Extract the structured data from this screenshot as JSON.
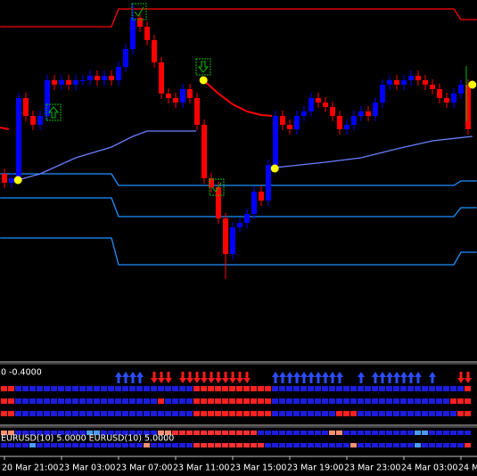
{
  "chart_data": {
    "type": "candlestick",
    "categories": [
      "20 Mar 21:00",
      null,
      null,
      null,
      null,
      null,
      null,
      null,
      "23 Mar 03:00",
      null,
      null,
      null,
      null,
      null,
      null,
      null,
      "23 Mar 07:00",
      null,
      null,
      null,
      null,
      null,
      null,
      null,
      "23 Mar 11:00",
      null,
      null,
      null,
      null,
      null,
      null,
      null,
      "23 Mar 15:00",
      null,
      null,
      null,
      null,
      null,
      null,
      null,
      "23 Mar 19:00",
      null,
      null,
      null,
      null,
      null,
      null,
      null,
      "23 Mar 23:00",
      null,
      null,
      null,
      null,
      null,
      null,
      null,
      "24 Mar 03:00",
      null,
      null,
      null,
      null,
      null,
      null,
      null,
      "24 M",
      null
    ],
    "open": [
      210,
      200,
      205,
      295,
      275,
      265,
      275,
      315,
      310,
      315,
      310,
      315,
      315,
      320,
      315,
      320,
      315,
      330,
      350,
      385,
      375,
      360,
      335,
      300,
      295,
      290,
      305,
      295,
      265,
      205,
      195,
      160,
      120,
      150,
      155,
      165,
      190,
      180,
      220,
      275,
      265,
      260,
      275,
      280,
      295,
      290,
      285,
      275,
      260,
      265,
      275,
      280,
      275,
      290,
      310,
      315,
      310,
      315,
      320,
      315,
      310,
      305,
      295,
      290,
      300,
      310
    ],
    "high": [
      216,
      211,
      301,
      301,
      281,
      281,
      321,
      321,
      321,
      321,
      321,
      321,
      326,
      326,
      326,
      326,
      336,
      356,
      402,
      391,
      381,
      366,
      341,
      306,
      301,
      311,
      311,
      301,
      271,
      211,
      201,
      166,
      156,
      161,
      171,
      196,
      196,
      226,
      281,
      281,
      271,
      281,
      286,
      301,
      301,
      296,
      291,
      281,
      271,
      281,
      286,
      286,
      296,
      316,
      321,
      321,
      321,
      326,
      326,
      321,
      316,
      311,
      301,
      306,
      316,
      316
    ],
    "low": [
      194,
      194,
      199,
      269,
      259,
      259,
      269,
      304,
      304,
      304,
      304,
      309,
      309,
      309,
      309,
      309,
      309,
      324,
      344,
      369,
      354,
      329,
      294,
      289,
      284,
      284,
      289,
      259,
      199,
      189,
      154,
      92,
      114,
      144,
      149,
      159,
      174,
      174,
      214,
      259,
      254,
      254,
      269,
      274,
      284,
      279,
      269,
      254,
      254,
      259,
      269,
      269,
      269,
      284,
      304,
      304,
      304,
      309,
      309,
      304,
      299,
      289,
      284,
      284,
      294,
      254
    ],
    "close": [
      200,
      205,
      295,
      275,
      265,
      275,
      315,
      310,
      315,
      310,
      315,
      315,
      320,
      315,
      320,
      315,
      330,
      350,
      385,
      375,
      360,
      335,
      300,
      295,
      290,
      305,
      295,
      265,
      205,
      195,
      160,
      120,
      150,
      155,
      165,
      190,
      180,
      220,
      275,
      265,
      260,
      275,
      280,
      295,
      290,
      285,
      275,
      260,
      265,
      275,
      280,
      275,
      290,
      310,
      315,
      310,
      315,
      320,
      315,
      310,
      305,
      295,
      290,
      300,
      310,
      260
    ],
    "up_color": "#0000ff",
    "down_color": "#ff0000",
    "ylim": [
      0,
      405
    ],
    "lines": [
      {
        "color": "#ff0000",
        "x": [
          -0.6,
          15,
          16,
          63,
          64,
          66.2
        ],
        "values": [
          375,
          375,
          395,
          395,
          383,
          383
        ]
      },
      {
        "color": "#1e90ff",
        "x": [
          -0.6,
          15,
          16,
          63,
          64,
          66.2
        ],
        "values": [
          210,
          210,
          197,
          197,
          202,
          202
        ]
      },
      {
        "color": "#1e90ff",
        "x": [
          -0.6,
          15,
          16,
          63,
          64,
          66.2
        ],
        "values": [
          183,
          183,
          162,
          162,
          172,
          172
        ]
      },
      {
        "color": "#1e90ff",
        "x": [
          -0.6,
          15,
          16,
          63,
          64,
          66.2
        ],
        "values": [
          138,
          138,
          108,
          108,
          122,
          122
        ]
      },
      {
        "color": "#ff0000",
        "x": [
          -0.6,
          0.6,
          null,
          27.9,
          30,
          32,
          34,
          36,
          37.5
        ],
        "values": [
          262,
          260,
          null,
          315,
          300,
          288,
          280,
          276,
          275
        ]
      },
      {
        "color": "#6a7fff",
        "x": [
          1.9,
          5,
          10,
          15,
          18,
          20,
          26.9,
          null,
          37.9,
          45,
          50,
          55,
          60,
          65.6
        ],
        "values": [
          203,
          210,
          228,
          240,
          252,
          258,
          258,
          null,
          217,
          223,
          228,
          238,
          247,
          252
        ]
      }
    ],
    "dots": {
      "color": "#ffff00",
      "x": [
        1.9,
        27.9,
        37.9,
        65.6
      ],
      "values": [
        203,
        315,
        216,
        310
      ]
    },
    "indicator_text": "0 -0.4000",
    "signals": [
      null,
      null,
      null,
      null,
      null,
      null,
      null,
      null,
      null,
      null,
      null,
      null,
      null,
      null,
      null,
      null,
      1,
      1,
      1,
      1,
      null,
      -1,
      -1,
      -1,
      null,
      -1,
      -1,
      -1,
      -1,
      -1,
      -1,
      -1,
      -1,
      -1,
      -1,
      null,
      null,
      null,
      1,
      1,
      1,
      1,
      1,
      1,
      1,
      1,
      1,
      1,
      null,
      null,
      1,
      null,
      1,
      1,
      1,
      1,
      1,
      1,
      1,
      null,
      1,
      null,
      null,
      null,
      -1,
      -1
    ],
    "signal_up_color": "#2b4dff",
    "signal_down_color": "#ff1a1a",
    "state_rows": [
      [
        -1,
        -1,
        1,
        1,
        1,
        1,
        1,
        1,
        1,
        1,
        1,
        1,
        1,
        1,
        1,
        1,
        1,
        1,
        1,
        1,
        1,
        1,
        1,
        1,
        1,
        1,
        1,
        -1,
        -1,
        -1,
        -1,
        -1,
        -1,
        -1,
        -1,
        -1,
        -1,
        -1,
        1,
        1,
        1,
        1,
        1,
        1,
        1,
        1,
        1,
        1,
        1,
        1,
        1,
        1,
        1,
        1,
        1,
        1,
        1,
        1,
        1,
        1,
        1,
        1,
        1,
        1,
        1,
        -1
      ],
      [
        -1,
        -1,
        1,
        1,
        1,
        1,
        1,
        1,
        1,
        1,
        1,
        1,
        1,
        1,
        1,
        1,
        1,
        1,
        1,
        1,
        1,
        1,
        -1,
        1,
        1,
        1,
        1,
        -1,
        -1,
        -1,
        -1,
        -1,
        -1,
        -1,
        -1,
        -1,
        -1,
        -1,
        1,
        1,
        1,
        1,
        1,
        1,
        1,
        1,
        1,
        1,
        1,
        1,
        1,
        1,
        1,
        1,
        1,
        1,
        1,
        1,
        1,
        1,
        1,
        1,
        1,
        -1,
        -1,
        -1
      ],
      [
        -1,
        -1,
        1,
        1,
        1,
        1,
        1,
        1,
        1,
        1,
        1,
        1,
        1,
        1,
        1,
        1,
        1,
        1,
        1,
        1,
        1,
        1,
        1,
        1,
        1,
        1,
        1,
        -1,
        -1,
        -1,
        -1,
        -1,
        -1,
        -1,
        -1,
        -1,
        -1,
        -1,
        1,
        1,
        1,
        1,
        1,
        1,
        1,
        1,
        1,
        -1,
        -1,
        -1,
        1,
        1,
        1,
        1,
        1,
        1,
        1,
        1,
        1,
        1,
        1,
        1,
        1,
        1,
        -1,
        -1
      ]
    ],
    "state_colors": [
      "#ff2020",
      "#1c1cdc"
    ],
    "lower_text": "EURUSD(10) 5.0000  EURUSD(10) 5.0000",
    "strength_rows": [
      [
        1,
        1,
        3,
        3,
        3,
        3,
        3,
        3,
        3,
        3,
        3,
        3,
        2,
        2,
        3,
        3,
        3,
        3,
        3,
        3,
        3,
        3,
        1,
        1,
        0,
        0,
        0,
        0,
        0,
        0,
        0,
        0,
        0,
        0,
        0,
        0,
        3,
        3,
        3,
        3,
        3,
        3,
        3,
        3,
        3,
        3,
        1,
        1,
        3,
        3,
        3,
        3,
        3,
        3,
        3,
        3,
        3,
        3,
        2,
        2,
        3,
        3,
        3,
        3,
        3,
        3
      ],
      [
        3,
        3,
        3,
        3,
        2,
        3,
        3,
        3,
        3,
        3,
        3,
        3,
        3,
        3,
        3,
        3,
        3,
        3,
        3,
        3,
        1,
        3,
        3,
        3,
        3,
        3,
        3,
        0,
        0,
        0,
        0,
        0,
        0,
        0,
        0,
        0,
        0,
        3,
        3,
        3,
        3,
        3,
        3,
        3,
        3,
        3,
        3,
        3,
        3,
        1,
        3,
        3,
        3,
        3,
        3,
        3,
        3,
        3,
        2,
        3,
        3,
        3,
        3,
        3,
        3,
        0
      ]
    ],
    "strength_colors": [
      "#ff3030",
      "#ff9070",
      "#4a9cff",
      "#1c1cdc"
    ]
  }
}
